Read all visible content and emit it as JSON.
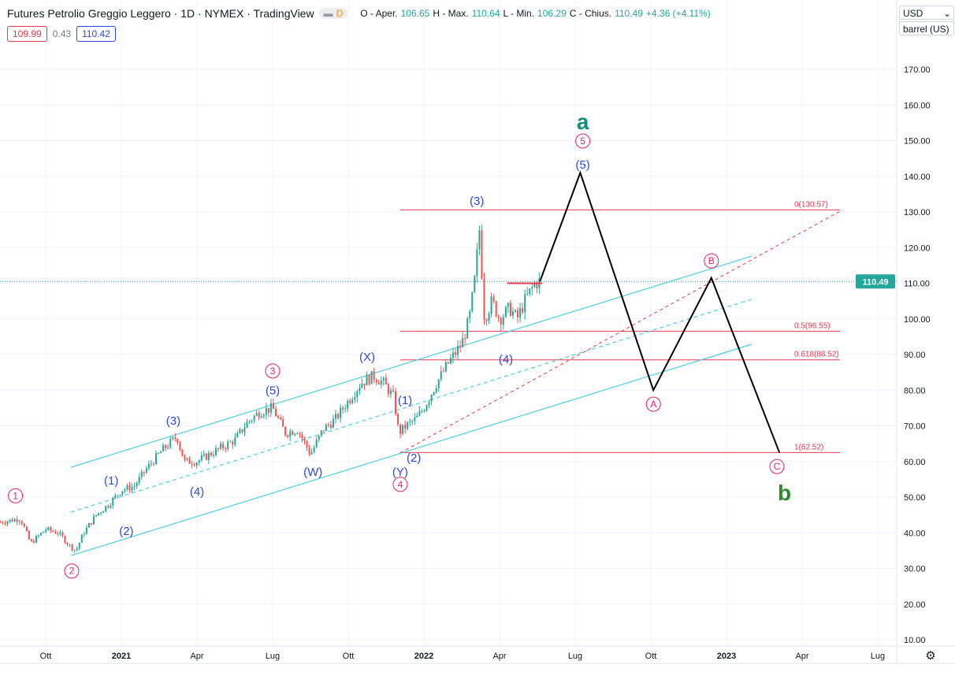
{
  "header": {
    "title": "Futures Petrolio Greggio Leggero · 1D · NYMEX · TradingView",
    "pill": "D",
    "ohlc": [
      {
        "k": "O - Aper.",
        "v": "106.65"
      },
      {
        "k": "H - Max.",
        "v": "110.64"
      },
      {
        "k": "L - Min.",
        "v": "106.29"
      },
      {
        "k": "C - Chius.",
        "v": "110.49"
      }
    ],
    "change": "+4.36 (+4.11%)",
    "bid": "109.99",
    "spread": "0.43",
    "ask": "110.42"
  },
  "selectors": {
    "currency": "USD",
    "unit": "barrel (US)"
  },
  "colors": {
    "up": "#26a69a",
    "down": "#ef5350",
    "channel": "#4dd0e1",
    "fib": "#e53950",
    "wave_red": "#e91e63",
    "wave_blue": "#2e48d0",
    "wave_green": "#10907a",
    "wave_green2": "#2e8b2e",
    "projection": "#000000"
  },
  "chart_data": {
    "type": "candlestick",
    "symbol": "Futures Petrolio Greggio Leggero",
    "interval": "1D",
    "exchange": "NYMEX",
    "y_ticks": [
      "10.00",
      "20.00",
      "30.00",
      "40.00",
      "50.00",
      "60.00",
      "70.00",
      "80.00",
      "90.00",
      "100.00",
      "110.00",
      "120.00",
      "130.00",
      "140.00",
      "150.00",
      "160.00",
      "170.00"
    ],
    "ylim": [
      10,
      170
    ],
    "x_ticks": [
      {
        "m": 0,
        "label": "Ott"
      },
      {
        "m": 3,
        "label": "2021"
      },
      {
        "m": 6,
        "label": "Apr"
      },
      {
        "m": 9,
        "label": "Lug"
      },
      {
        "m": 12,
        "label": "Ott"
      },
      {
        "m": 15,
        "label": "2022"
      },
      {
        "m": 18,
        "label": "Apr"
      },
      {
        "m": 21,
        "label": "Lug"
      },
      {
        "m": 24,
        "label": "Ott"
      },
      {
        "m": 27,
        "label": "2023"
      },
      {
        "m": 30,
        "label": "Apr"
      },
      {
        "m": 33,
        "label": "Lug"
      }
    ],
    "x_unit": "months since 2020-10-01",
    "last_price": "110.49",
    "price_path": [
      [
        -1.8,
        43
      ],
      [
        -1,
        44
      ],
      [
        -0.6,
        37
      ],
      [
        0,
        41
      ],
      [
        0.5,
        40
      ],
      [
        1,
        36
      ],
      [
        1.2,
        35
      ],
      [
        1.5,
        40
      ],
      [
        2,
        45
      ],
      [
        2.5,
        48
      ],
      [
        3,
        52
      ],
      [
        3.5,
        53
      ],
      [
        4,
        58
      ],
      [
        4.6,
        63
      ],
      [
        5.2,
        67
      ],
      [
        5.5,
        60
      ],
      [
        6,
        60
      ],
      [
        6.5,
        62
      ],
      [
        7,
        64
      ],
      [
        7.5,
        66
      ],
      [
        8,
        71
      ],
      [
        8.5,
        74
      ],
      [
        9,
        75
      ],
      [
        9.5,
        68
      ],
      [
        10,
        69
      ],
      [
        10.5,
        62
      ],
      [
        11,
        69
      ],
      [
        11.5,
        72
      ],
      [
        12,
        77
      ],
      [
        12.5,
        82
      ],
      [
        13,
        84
      ],
      [
        13.4,
        82
      ],
      [
        13.8,
        78
      ],
      [
        14,
        68
      ],
      [
        14.3,
        70
      ],
      [
        14.7,
        72
      ],
      [
        15,
        75
      ],
      [
        15.5,
        82
      ],
      [
        16,
        88
      ],
      [
        16.5,
        93
      ],
      [
        16.8,
        100
      ],
      [
        17,
        110
      ],
      [
        17.2,
        125
      ],
      [
        17.4,
        100
      ],
      [
        17.7,
        105
      ],
      [
        18,
        100
      ],
      [
        18.4,
        103
      ],
      [
        18.7,
        100
      ],
      [
        19,
        105
      ],
      [
        19.4,
        110
      ],
      [
        19.6,
        110.49
      ]
    ],
    "projection": [
      [
        19.6,
        110.49
      ],
      [
        21.2,
        141
      ],
      [
        24.1,
        80
      ],
      [
        26.4,
        111.5
      ],
      [
        29.1,
        62.5
      ]
    ],
    "channels": [
      {
        "from": [
          1,
          58.4
        ],
        "to": [
          28,
          117.6
        ],
        "dashed": false
      },
      {
        "from": [
          1,
          45.8
        ],
        "to": [
          28,
          105.5
        ],
        "dashed": true
      },
      {
        "from": [
          1,
          33.6
        ],
        "to": [
          28,
          92.9
        ],
        "dashed": false
      }
    ],
    "trendline": {
      "from": [
        14.06,
        62.4
      ],
      "to": [
        31.5,
        130.2
      ]
    },
    "resistance": {
      "from": [
        18.3,
        110
      ],
      "to": [
        19.7,
        110
      ]
    },
    "fib": {
      "from": 14.06,
      "to": 31.5,
      "levels": [
        {
          "price": 130.57,
          "label": "0(130.57)"
        },
        {
          "price": 96.55,
          "label": "0.5(96.55)"
        },
        {
          "price": 88.52,
          "label": "0.618(88.52)"
        },
        {
          "price": 62.52,
          "label": "1(62.52)"
        }
      ]
    },
    "waves": [
      {
        "m": -1.2,
        "p": 49.5,
        "t": "1",
        "s": "circle"
      },
      {
        "m": 1.03,
        "p": 28.4,
        "t": "2",
        "s": "circle"
      },
      {
        "m": 2.6,
        "p": 55.3,
        "t": "(1)",
        "s": "blue"
      },
      {
        "m": 3.2,
        "p": 41.2,
        "t": "(2)",
        "s": "blue"
      },
      {
        "m": 5.06,
        "p": 72.1,
        "t": "(3)",
        "s": "blue"
      },
      {
        "m": 6.0,
        "p": 52.2,
        "t": "(4)",
        "s": "blue"
      },
      {
        "m": 9.0,
        "p": 84.5,
        "t": "3",
        "s": "circle"
      },
      {
        "m": 9.0,
        "p": 80.6,
        "t": "(5)",
        "s": "blue"
      },
      {
        "m": 10.6,
        "p": 57.7,
        "t": "(W)",
        "s": "blue"
      },
      {
        "m": 12.75,
        "p": 90,
        "t": "(X)",
        "s": "blue"
      },
      {
        "m": 14.25,
        "p": 77.8,
        "t": "(1)",
        "s": "blue"
      },
      {
        "m": 14.6,
        "p": 61.7,
        "t": "(2)",
        "s": "blue"
      },
      {
        "m": 14.06,
        "p": 57.7,
        "t": "(Y)",
        "s": "blue"
      },
      {
        "m": 14.06,
        "p": 52.7,
        "t": "4",
        "s": "circle"
      },
      {
        "m": 17.1,
        "p": 133.8,
        "t": "(3)",
        "s": "blue"
      },
      {
        "m": 18.25,
        "p": 89.3,
        "t": "(4)",
        "s": "blue"
      },
      {
        "m": 21.3,
        "p": 143.9,
        "t": "(5)",
        "s": "blue"
      },
      {
        "m": 21.3,
        "p": 149,
        "t": "5",
        "s": "circle"
      },
      {
        "m": 21.3,
        "p": 155.2,
        "t": "a",
        "s": "green"
      },
      {
        "m": 24.1,
        "p": 75.2,
        "t": "A",
        "s": "circle"
      },
      {
        "m": 26.4,
        "p": 115.4,
        "t": "B",
        "s": "circle"
      },
      {
        "m": 29.0,
        "p": 57.7,
        "t": "C",
        "s": "circle"
      },
      {
        "m": 29.3,
        "p": 51.1,
        "t": "b",
        "s": "green2"
      }
    ]
  }
}
